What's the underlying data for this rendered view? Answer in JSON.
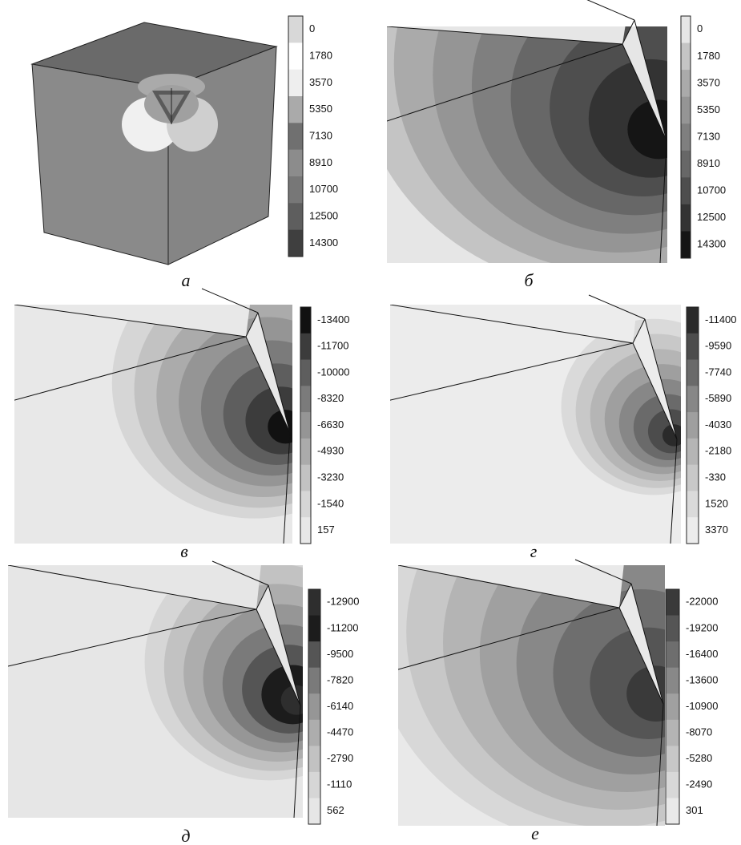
{
  "panels": [
    {
      "label": "а",
      "legend": [
        0,
        1780,
        3570,
        5350,
        7130,
        8910,
        10700,
        12500,
        14300
      ],
      "colors": [
        "#d8d8d8",
        "#ffffff",
        "#eeeeee",
        "#aaaaaa",
        "#707070",
        "#8c8c8c",
        "#777777",
        "#5e5e5e",
        "#3f3f3f"
      ]
    },
    {
      "label": "б",
      "legend": [
        0,
        1780,
        3570,
        5350,
        7130,
        8910,
        10700,
        12500,
        14300
      ],
      "colors": [
        "#e6e6e6",
        "#c4c4c4",
        "#aaaaaa",
        "#959595",
        "#7f7f7f",
        "#676767",
        "#4e4e4e",
        "#333333",
        "#151515"
      ]
    },
    {
      "label": "в",
      "legend": [
        -13400,
        -11700,
        -10000,
        -8320,
        -6630,
        -4930,
        -3230,
        -1540,
        157
      ],
      "colors": [
        "#111111",
        "#3c3c3c",
        "#5e5e5e",
        "#7b7b7b",
        "#959595",
        "#ababab",
        "#c2c2c2",
        "#d6d6d6",
        "#e8e8e8"
      ]
    },
    {
      "label": "г",
      "legend": [
        -11400,
        -9590,
        -7740,
        -5890,
        -4030,
        -2180,
        -330,
        1520,
        3370
      ],
      "colors": [
        "#2a2a2a",
        "#4c4c4c",
        "#6a6a6a",
        "#878787",
        "#9f9f9f",
        "#b5b5b5",
        "#c8c8c8",
        "#dadada",
        "#ececec"
      ]
    },
    {
      "label": "д",
      "legend": [
        -12900,
        -11200,
        -9500,
        -7820,
        -6140,
        -4470,
        -2790,
        -1110,
        562
      ],
      "colors": [
        "#2e2e2e",
        "#1c1c1c",
        "#555555",
        "#7a7a7a",
        "#969696",
        "#adadad",
        "#c2c2c2",
        "#d6d6d6",
        "#e6e6e6"
      ]
    },
    {
      "label": "е",
      "legend": [
        -22000,
        -19200,
        -16400,
        -13600,
        -10900,
        -8070,
        -5280,
        -2490,
        301
      ],
      "colors": [
        "#3a3a3a",
        "#555555",
        "#6e6e6e",
        "#888888",
        "#a0a0a0",
        "#b4b4b4",
        "#c7c7c7",
        "#d8d8d8",
        "#e9e9e9"
      ]
    }
  ]
}
